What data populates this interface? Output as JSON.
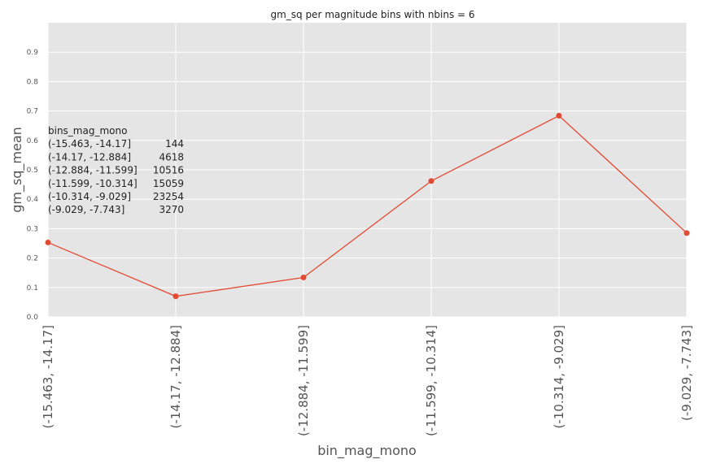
{
  "chart_data": {
    "type": "line",
    "title": "gm_sq per magnitude bins with nbins = 6",
    "xlabel": "bin_mag_mono",
    "ylabel": "gm_sq_mean",
    "categories": [
      "(-15.463, -14.17]",
      "(-14.17, -12.884]",
      "(-12.884, -11.599]",
      "(-11.599, -10.314]",
      "(-10.314, -9.029]",
      "(-9.029, -7.743]"
    ],
    "values": [
      0.253,
      0.07,
      0.134,
      0.462,
      0.684,
      0.285
    ],
    "ylim": [
      0.0,
      1.0
    ],
    "yticks": [
      "0.0",
      "0.1",
      "0.2",
      "0.3",
      "0.4",
      "0.5",
      "0.6",
      "0.7",
      "0.8",
      "0.9"
    ],
    "grid": true,
    "annotation": [
      {
        "label": "bins_mag_mono",
        "count": ""
      },
      {
        "label": "(-15.463, -14.17]",
        "count": "144"
      },
      {
        "label": "(-14.17, -12.884]",
        "count": "4618"
      },
      {
        "label": "(-12.884, -11.599]",
        "count": "10516"
      },
      {
        "label": "(-11.599, -10.314]",
        "count": "15059"
      },
      {
        "label": "(-10.314, -9.029]",
        "count": "23254"
      },
      {
        "label": "(-9.029, -7.743]",
        "count": "3270"
      }
    ],
    "colors": {
      "line": "#e24a33",
      "background": "#e5e5e5",
      "grid": "#ffffff"
    }
  }
}
